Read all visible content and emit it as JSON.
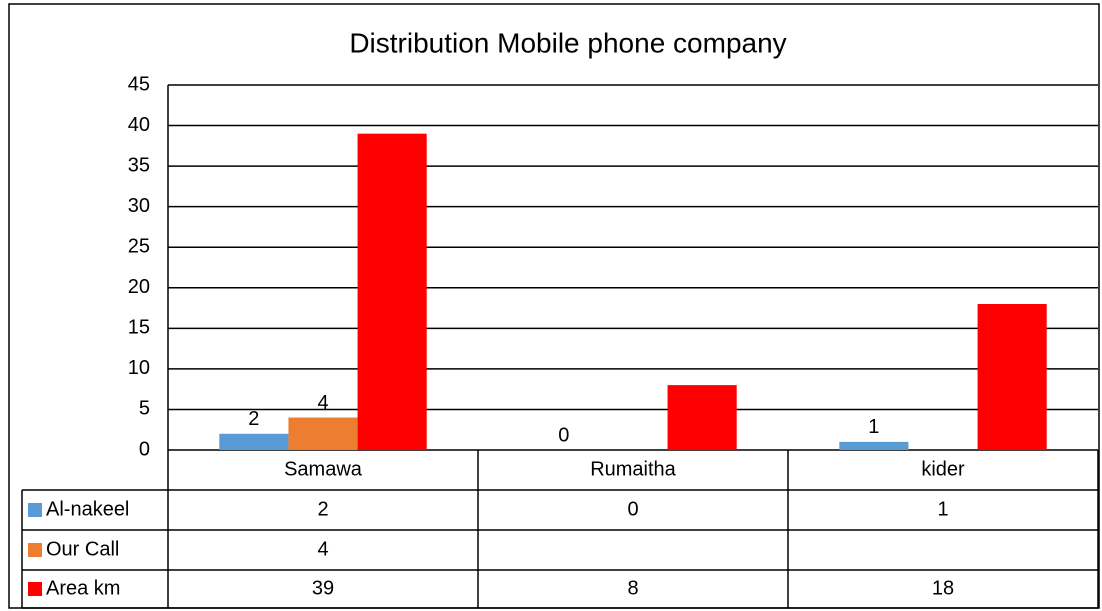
{
  "chart_data": {
    "type": "bar",
    "title": "Distribution Mobile phone company",
    "categories": [
      "Samawa",
      "Rumaitha",
      "kider"
    ],
    "series": [
      {
        "name": "Al-nakeel",
        "color": "#5b9bd5",
        "values": [
          2,
          0,
          1
        ],
        "data_labels": true
      },
      {
        "name": "Our Call",
        "color": "#ed7d31",
        "values": [
          4,
          null,
          null
        ],
        "data_labels": true
      },
      {
        "name": "Area km",
        "color": "#ff0000",
        "values": [
          39,
          8,
          18
        ],
        "data_labels": false
      }
    ],
    "ylim": [
      0,
      45
    ],
    "yticks": [
      0,
      5,
      10,
      15,
      20,
      25,
      30,
      35,
      40,
      45
    ],
    "grid": true,
    "data_table": true
  }
}
